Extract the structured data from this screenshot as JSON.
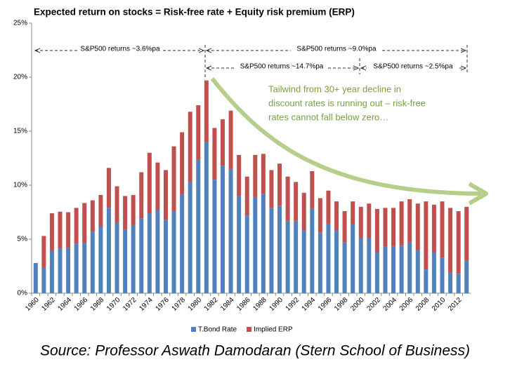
{
  "chart_data": {
    "type": "stacked_bar",
    "title": "Expected return on stocks = Risk-free rate + Equity risk premium (ERP)",
    "categories": [
      "1960",
      null,
      "1962",
      null,
      "1964",
      null,
      "1966",
      null,
      "1968",
      null,
      "1970",
      null,
      "1972",
      null,
      "1974",
      null,
      "1976",
      null,
      "1978",
      null,
      "1980",
      null,
      "1982",
      null,
      "1984",
      null,
      "1986",
      null,
      "1988",
      null,
      "1990",
      null,
      "1992",
      null,
      "1994",
      null,
      "1996",
      null,
      "1998",
      null,
      "2000",
      null,
      "2002",
      null,
      "2004",
      null,
      "2006",
      null,
      "2008",
      null,
      "2010",
      null,
      "2012",
      null
    ],
    "series": [
      {
        "name": "T.Bond Rate",
        "color": "#4f81bd",
        "values": [
          2.8,
          2.4,
          3.9,
          4.15,
          4.2,
          4.6,
          4.65,
          5.7,
          6.2,
          7.9,
          6.5,
          5.9,
          6.3,
          6.9,
          7.4,
          7.7,
          6.8,
          7.6,
          9.1,
          10.3,
          12.4,
          14.0,
          10.5,
          11.8,
          11.5,
          9.0,
          7.2,
          8.9,
          9.2,
          7.9,
          8.1,
          6.7,
          6.7,
          5.8,
          7.8,
          5.6,
          6.4,
          5.8,
          4.7,
          6.4,
          5.1,
          5.1,
          3.8,
          4.3,
          4.3,
          4.4,
          4.7,
          4.0,
          2.2,
          3.8,
          3.3,
          1.9,
          1.8,
          3.0
        ]
      },
      {
        "name": "Implied ERP",
        "color": "#c0504d",
        "values": [
          null,
          2.9,
          3.5,
          3.4,
          3.3,
          3.3,
          3.7,
          2.9,
          2.9,
          3.7,
          3.4,
          3.1,
          2.8,
          4.3,
          5.6,
          4.4,
          4.6,
          6.0,
          5.8,
          6.5,
          5.0,
          5.7,
          4.8,
          4.3,
          5.4,
          3.8,
          3.6,
          3.9,
          3.7,
          3.5,
          3.9,
          4.1,
          3.6,
          3.5,
          3.5,
          3.2,
          3.1,
          2.7,
          2.9,
          2.1,
          2.9,
          3.2,
          4.0,
          3.6,
          3.6,
          4.1,
          4.0,
          4.3,
          6.3,
          4.4,
          5.2,
          6.0,
          5.8,
          5.0
        ]
      }
    ],
    "ylim": [
      0,
      25
    ],
    "yticks": [
      {
        "value": 0,
        "label": "0%"
      },
      {
        "value": 5,
        "label": "5%"
      },
      {
        "value": 10,
        "label": "10%"
      },
      {
        "value": 15,
        "label": "15%"
      },
      {
        "value": 20,
        "label": "20%"
      },
      {
        "value": 25,
        "label": "25%"
      }
    ],
    "periods": [
      "S&P500 returns ~3.6%pa",
      "S&P500 returns ~9.0%pa",
      "S&P500 returns ~14.7%pa",
      "S&P500 returns ~2.5%pa"
    ],
    "callout": [
      "Tailwind from 30+ year decline in",
      "discount rates is running out – risk-free",
      "rates cannot fall below zero…"
    ],
    "source": "Source: Professor Aswath Damodaran (Stern School of Business)"
  }
}
